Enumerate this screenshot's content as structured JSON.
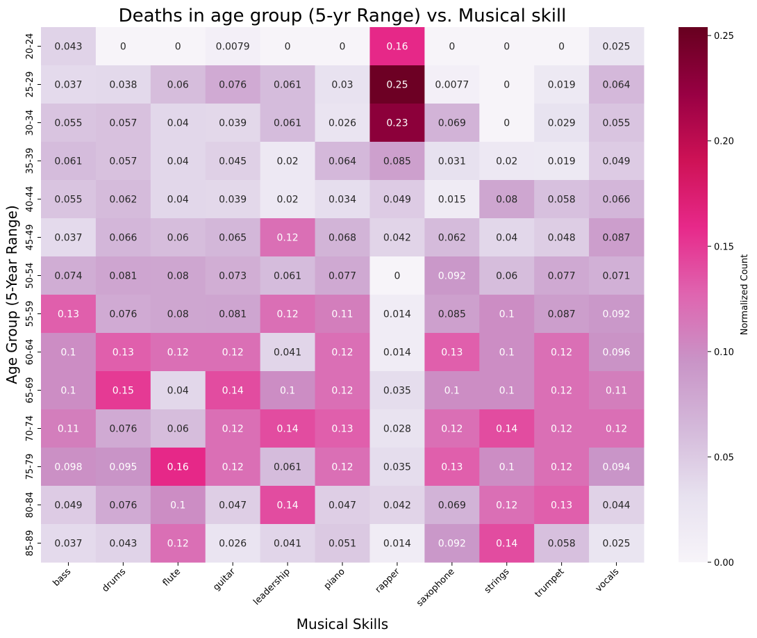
{
  "chart_data": {
    "type": "heatmap",
    "title": "Deaths in age group (5-yr Range) vs. Musical skill",
    "xlabel": "Musical Skills",
    "ylabel": "Age Group (5-Year Range)",
    "x_categories": [
      "bass",
      "drums",
      "flute",
      "guitar",
      "leadership",
      "piano",
      "rapper",
      "saxophone",
      "strings",
      "trumpet",
      "vocals"
    ],
    "y_categories": [
      "20-24",
      "25-29",
      "30-34",
      "35-39",
      "40-44",
      "45-49",
      "50-54",
      "55-59",
      "60-64",
      "65-69",
      "70-74",
      "75-79",
      "80-84",
      "85-89"
    ],
    "values": [
      [
        "0.043",
        "0",
        "0",
        "0.0079",
        "0",
        "0",
        "0.16",
        "0",
        "0",
        "0",
        "0.025"
      ],
      [
        "0.037",
        "0.038",
        "0.06",
        "0.076",
        "0.061",
        "0.03",
        "0.25",
        "0.0077",
        "0",
        "0.019",
        "0.064"
      ],
      [
        "0.055",
        "0.057",
        "0.04",
        "0.039",
        "0.061",
        "0.026",
        "0.23",
        "0.069",
        "0",
        "0.029",
        "0.055"
      ],
      [
        "0.061",
        "0.057",
        "0.04",
        "0.045",
        "0.02",
        "0.064",
        "0.085",
        "0.031",
        "0.02",
        "0.019",
        "0.049"
      ],
      [
        "0.055",
        "0.062",
        "0.04",
        "0.039",
        "0.02",
        "0.034",
        "0.049",
        "0.015",
        "0.08",
        "0.058",
        "0.066"
      ],
      [
        "0.037",
        "0.066",
        "0.06",
        "0.065",
        "0.12",
        "0.068",
        "0.042",
        "0.062",
        "0.04",
        "0.048",
        "0.087"
      ],
      [
        "0.074",
        "0.081",
        "0.08",
        "0.073",
        "0.061",
        "0.077",
        "0",
        "0.092",
        "0.06",
        "0.077",
        "0.071"
      ],
      [
        "0.13",
        "0.076",
        "0.08",
        "0.081",
        "0.12",
        "0.11",
        "0.014",
        "0.085",
        "0.1",
        "0.087",
        "0.092"
      ],
      [
        "0.1",
        "0.13",
        "0.12",
        "0.12",
        "0.041",
        "0.12",
        "0.014",
        "0.13",
        "0.1",
        "0.12",
        "0.096"
      ],
      [
        "0.1",
        "0.15",
        "0.04",
        "0.14",
        "0.1",
        "0.12",
        "0.035",
        "0.1",
        "0.1",
        "0.12",
        "0.11"
      ],
      [
        "0.11",
        "0.076",
        "0.06",
        "0.12",
        "0.14",
        "0.13",
        "0.028",
        "0.12",
        "0.14",
        "0.12",
        "0.12"
      ],
      [
        "0.098",
        "0.095",
        "0.16",
        "0.12",
        "0.061",
        "0.12",
        "0.035",
        "0.13",
        "0.1",
        "0.12",
        "0.094"
      ],
      [
        "0.049",
        "0.076",
        "0.1",
        "0.047",
        "0.14",
        "0.047",
        "0.042",
        "0.069",
        "0.12",
        "0.13",
        "0.044"
      ],
      [
        "0.037",
        "0.043",
        "0.12",
        "0.026",
        "0.041",
        "0.051",
        "0.014",
        "0.092",
        "0.14",
        "0.058",
        "0.025"
      ]
    ],
    "colorbar": {
      "label": "Normalized Count",
      "range": [
        0,
        0.254
      ],
      "ticks": [
        "0.00",
        "0.05",
        "0.10",
        "0.15",
        "0.20",
        "0.25"
      ]
    },
    "colorscale": [
      "#f7f4f9",
      "#e7e1ef",
      "#d4b9da",
      "#c994c7",
      "#df65b0",
      "#e7298a",
      "#ce1256",
      "#980043",
      "#67001f"
    ]
  }
}
